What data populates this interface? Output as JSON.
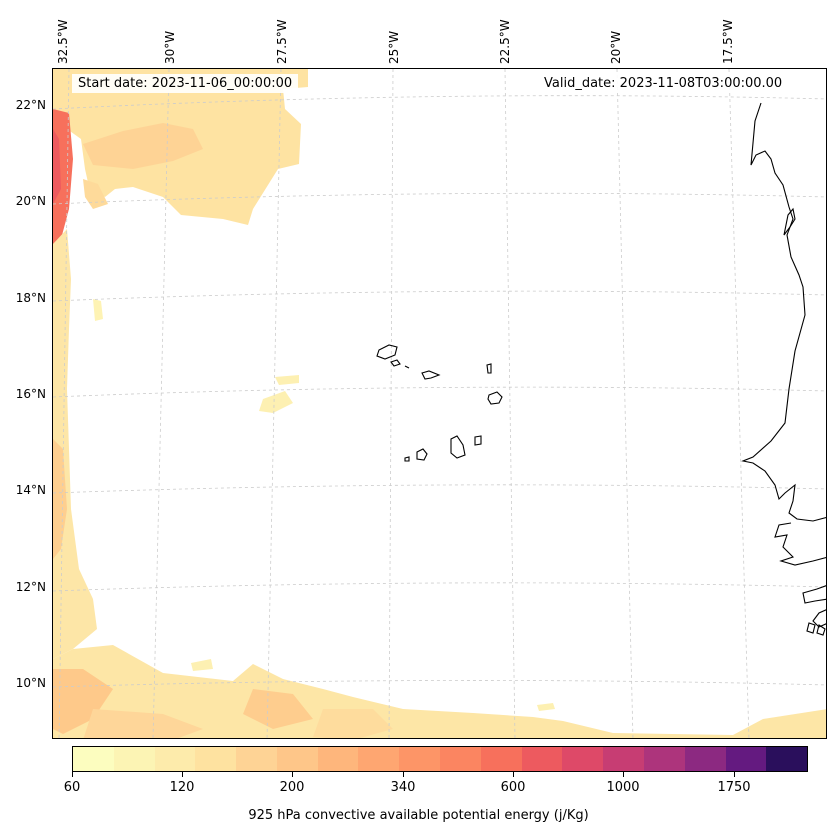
{
  "map": {
    "start_date": "Start date: 2023-11-06_00:00:00",
    "valid_date": "Valid_date: 2023-11-08T03:00:00.00",
    "longitude_labels": [
      "32.5°W",
      "30°W",
      "27.5°W",
      "25°W",
      "22.5°W",
      "20°W",
      "17.5°W"
    ],
    "latitude_labels": [
      "22°N",
      "20°N",
      "18°N",
      "16°N",
      "14°N",
      "12°N",
      "10°N"
    ],
    "coastline_color": "#000000",
    "gridline_color": "#cccccc"
  },
  "colorbar": {
    "title": "925 hPa convective available potential energy (j/Kg)",
    "tick_labels": [
      "60",
      "120",
      "200",
      "340",
      "600",
      "1000",
      "1750"
    ],
    "colors": [
      "#fcfdbf",
      "#fcf4b4",
      "#fdebab",
      "#fee2a0",
      "#fed395",
      "#fec689",
      "#feb67c",
      "#fea671",
      "#fd9567",
      "#fb8561",
      "#f7705c",
      "#ed5a5f",
      "#de4968",
      "#c73d73",
      "#ad347c",
      "#8c2981",
      "#641a80",
      "#2a0f5c"
    ]
  }
}
